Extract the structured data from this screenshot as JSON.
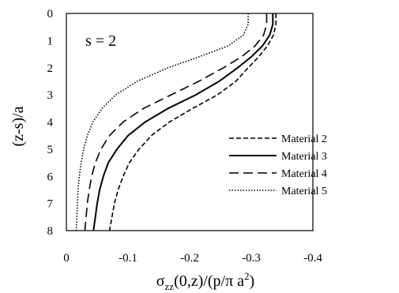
{
  "chart_data": {
    "type": "line",
    "annotation": "s = 2",
    "xlabel": "σzz(0,z)/(p/π a2)",
    "xlabel_parts": {
      "a": "σ",
      "b": "zz",
      "c": "(0,z)/(p/π a",
      "d": "2",
      "e": ")"
    },
    "ylabel": "(z-s)/a",
    "xlim": [
      0,
      -0.4
    ],
    "ylim": [
      0,
      8
    ],
    "y_inverted": true,
    "grid": false,
    "legend_position": "bottom-right",
    "x_tick_labels": [
      "0",
      "-0.1",
      "-0.2",
      "-0.3",
      "-0.4"
    ],
    "x_ticks": [
      0,
      -0.1,
      -0.2,
      -0.3,
      -0.4
    ],
    "y_tick_labels": [
      "0",
      "1",
      "2",
      "3",
      "4",
      "5",
      "6",
      "7",
      "8"
    ],
    "y_ticks": [
      0,
      1,
      2,
      3,
      4,
      5,
      6,
      7,
      8
    ],
    "series": [
      {
        "name": "Material 2",
        "style": "dashed",
        "color": "#000000",
        "points": [
          [
            -0.34,
            0.0
          ],
          [
            -0.34,
            0.4
          ],
          [
            -0.336,
            0.8
          ],
          [
            -0.326,
            1.2
          ],
          [
            -0.312,
            1.6
          ],
          [
            -0.295,
            2.0
          ],
          [
            -0.275,
            2.5
          ],
          [
            -0.245,
            3.0
          ],
          [
            -0.205,
            3.5
          ],
          [
            -0.167,
            4.0
          ],
          [
            -0.138,
            4.5
          ],
          [
            -0.118,
            5.0
          ],
          [
            -0.102,
            5.5
          ],
          [
            -0.092,
            6.0
          ],
          [
            -0.084,
            6.5
          ],
          [
            -0.078,
            7.0
          ],
          [
            -0.074,
            7.5
          ],
          [
            -0.07,
            8.0
          ]
        ]
      },
      {
        "name": "Material 3",
        "style": "solid",
        "color": "#000000",
        "points": [
          [
            -0.335,
            0.0
          ],
          [
            -0.335,
            0.4
          ],
          [
            -0.33,
            0.8
          ],
          [
            -0.318,
            1.2
          ],
          [
            -0.3,
            1.6
          ],
          [
            -0.278,
            2.0
          ],
          [
            -0.248,
            2.5
          ],
          [
            -0.21,
            3.0
          ],
          [
            -0.165,
            3.5
          ],
          [
            -0.128,
            4.0
          ],
          [
            -0.1,
            4.5
          ],
          [
            -0.082,
            5.0
          ],
          [
            -0.068,
            5.5
          ],
          [
            -0.06,
            6.0
          ],
          [
            -0.054,
            6.5
          ],
          [
            -0.05,
            7.0
          ],
          [
            -0.047,
            7.5
          ],
          [
            -0.044,
            8.0
          ]
        ]
      },
      {
        "name": "Material 4",
        "style": "long-dashed",
        "color": "#000000",
        "points": [
          [
            -0.325,
            0.0
          ],
          [
            -0.325,
            0.4
          ],
          [
            -0.32,
            0.8
          ],
          [
            -0.306,
            1.2
          ],
          [
            -0.284,
            1.6
          ],
          [
            -0.255,
            2.0
          ],
          [
            -0.215,
            2.5
          ],
          [
            -0.17,
            3.0
          ],
          [
            -0.125,
            3.5
          ],
          [
            -0.092,
            4.0
          ],
          [
            -0.07,
            4.5
          ],
          [
            -0.056,
            5.0
          ],
          [
            -0.047,
            5.5
          ],
          [
            -0.041,
            6.0
          ],
          [
            -0.037,
            6.5
          ],
          [
            -0.034,
            7.0
          ],
          [
            -0.032,
            7.5
          ],
          [
            -0.03,
            8.0
          ]
        ]
      },
      {
        "name": "Material 5",
        "style": "dotted",
        "color": "#000000",
        "points": [
          [
            -0.295,
            0.0
          ],
          [
            -0.295,
            0.4
          ],
          [
            -0.287,
            0.8
          ],
          [
            -0.262,
            1.2
          ],
          [
            -0.215,
            1.6
          ],
          [
            -0.165,
            2.0
          ],
          [
            -0.115,
            2.5
          ],
          [
            -0.08,
            3.0
          ],
          [
            -0.058,
            3.5
          ],
          [
            -0.043,
            4.0
          ],
          [
            -0.034,
            4.5
          ],
          [
            -0.028,
            5.0
          ],
          [
            -0.024,
            5.5
          ],
          [
            -0.021,
            6.0
          ],
          [
            -0.019,
            6.5
          ],
          [
            -0.018,
            7.0
          ],
          [
            -0.017,
            7.5
          ],
          [
            -0.016,
            8.0
          ]
        ]
      }
    ]
  }
}
